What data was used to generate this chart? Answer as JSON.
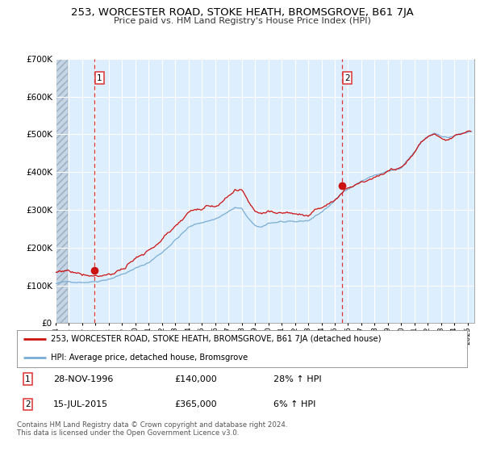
{
  "title": "253, WORCESTER ROAD, STOKE HEATH, BROMSGROVE, B61 7JA",
  "subtitle": "Price paid vs. HM Land Registry's House Price Index (HPI)",
  "legend_label_red": "253, WORCESTER ROAD, STOKE HEATH, BROMSGROVE, B61 7JA (detached house)",
  "legend_label_blue": "HPI: Average price, detached house, Bromsgrove",
  "sale1_date": "28-NOV-1996",
  "sale1_price": 140000,
  "sale1_hpi": "28% ↑ HPI",
  "sale2_date": "15-JUL-2015",
  "sale2_price": 365000,
  "sale2_hpi": "6% ↑ HPI",
  "footer": "Contains HM Land Registry data © Crown copyright and database right 2024.\nThis data is licensed under the Open Government Licence v3.0.",
  "sale1_x": 1996.91,
  "sale2_x": 2015.54,
  "hpi_color": "#7aadd4",
  "price_color": "#cc1111",
  "sale_dot_color": "#cc1111",
  "vline_color": "#dd3333",
  "bg_color": "#ddeeff",
  "grid_color": "#ffffff",
  "ylim": [
    0,
    700000
  ],
  "xlim_start": 1994.0,
  "xlim_end": 2025.5,
  "yticks": [
    0,
    100000,
    200000,
    300000,
    400000,
    500000,
    600000,
    700000
  ]
}
